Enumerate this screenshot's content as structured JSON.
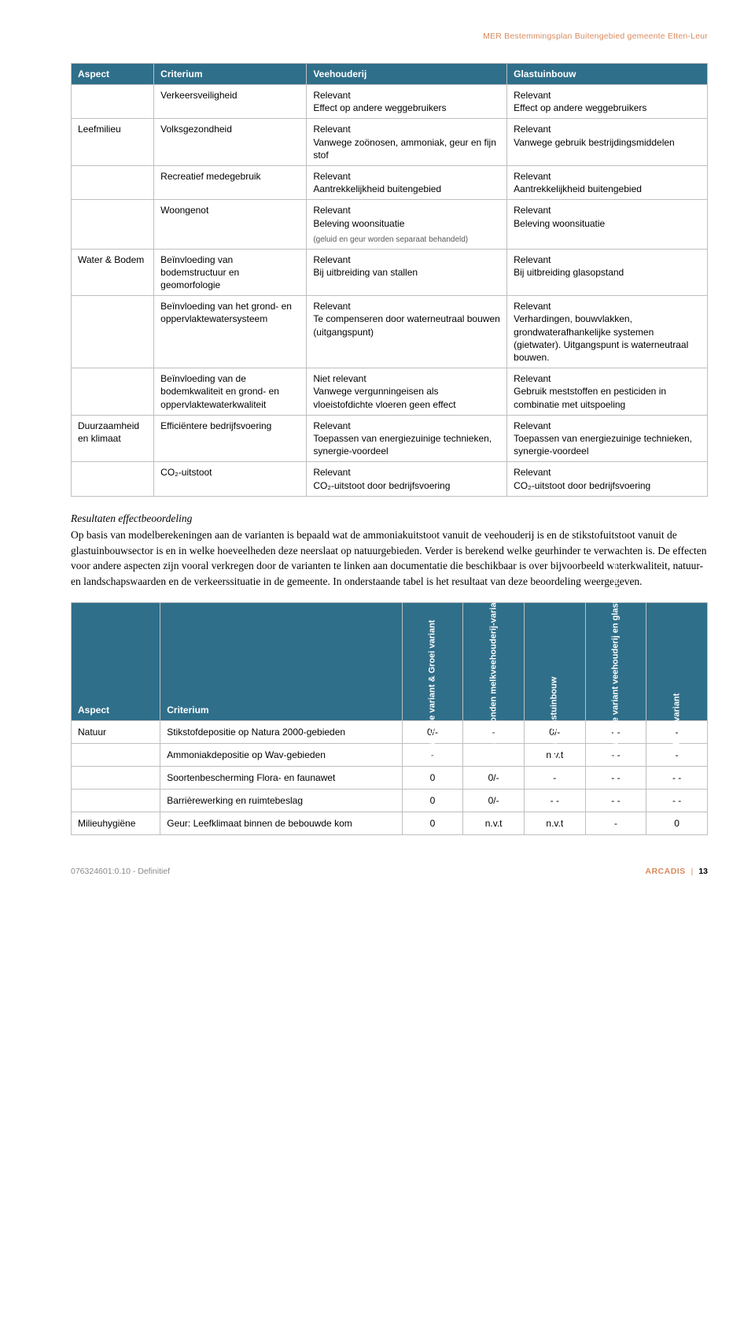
{
  "header": {
    "docTitle": "MER Bestemmingsplan Buitengebied gemeente Etten-Leur"
  },
  "table1": {
    "headers": {
      "aspect": "Aspect",
      "criterium": "Criterium",
      "veehouderij": "Veehouderij",
      "glastuinbouw": "Glastuinbouw"
    },
    "rows": [
      {
        "aspect": "",
        "criterium": "Verkeersveiligheid",
        "c3": "Relevant\nEffect op andere weggebruikers",
        "c4": "Relevant\nEffect op andere weggebruikers"
      },
      {
        "aspect": "Leefmilieu",
        "criterium": "Volksgezondheid",
        "c3": "Relevant\nVanwege zoönosen, ammoniak, geur en fijn stof",
        "c4": "Relevant\nVanwege gebruik bestrijdingsmiddelen"
      },
      {
        "aspect": "",
        "criterium": "Recreatief medegebruik",
        "c3": "Relevant\nAantrekkelijkheid buitengebied",
        "c4": "Relevant\nAantrekkelijkheid buitengebied"
      },
      {
        "aspect": "",
        "criterium": "Woongenot",
        "c3": "Relevant\nBeleving woonsituatie",
        "c3note": "(geluid en geur worden separaat behandeld)",
        "c4": "Relevant\nBeleving woonsituatie"
      },
      {
        "aspect": "Water & Bodem",
        "criterium": "Beïnvloeding van bodemstructuur en geomorfologie",
        "c3": "Relevant\nBij uitbreiding van stallen",
        "c4": "Relevant\nBij uitbreiding glasopstand"
      },
      {
        "aspect": "",
        "criterium": "Beïnvloeding van het grond- en oppervlaktewatersysteem",
        "c3": "Relevant\nTe compenseren door waterneutraal bouwen (uitgangspunt)",
        "c4": "Relevant\nVerhardingen, bouwvlakken, grondwaterafhankelijke systemen (gietwater). Uitgangspunt is waterneutraal bouwen."
      },
      {
        "aspect": "",
        "criterium": "Beïnvloeding van de bodemkwaliteit en grond- en oppervlaktewaterkwaliteit",
        "c3": "Niet relevant\nVanwege vergunningeisen als vloeistofdichte vloeren geen effect",
        "c4": "Relevant\nGebruik meststoffen en pesticiden in combinatie met uitspoeling"
      },
      {
        "aspect": "Duurzaamheid en klimaat",
        "criterium": "Efficiëntere bedrijfsvoering",
        "c3": "Relevant\nToepassen van energiezuinige technieken, synergie-voordeel",
        "c4": "Relevant\nToepassen van energiezuinige technieken, synergie-voordeel"
      },
      {
        "aspect": "",
        "criterium": "CO₂-uitstoot",
        "c3": "Relevant\nCO₂-uitstoot door bedrijfsvoering",
        "c4": "Relevant\nCO₂-uitstoot door bedrijfsvoering"
      }
    ]
  },
  "body": {
    "heading": "Resultaten effectbeoordeling",
    "paragraph": "Op basis van modelberekeningen aan de varianten is bepaald wat de ammoniakuitstoot vanuit de veehouderij is en de stikstofuitstoot vanuit de glastuinbouwsector is en in welke hoeveelheden deze neerslaat op natuurgebieden. Verder is berekend welke geurhinder te verwachten is. De effecten voor andere aspecten zijn vooral verkregen door de varianten te linken aan documentatie die beschikbaar is over bijvoorbeeld waterkwaliteit, natuur- en landschapswaarden en de verkeerssituatie in de gemeente. In onderstaande tabel is het resultaat van deze beoordeling weergegeven."
  },
  "table2": {
    "headers": {
      "aspect": "Aspect",
      "criterium": "Criterium",
      "v1": "Actualisatie variant & Groei variant",
      "v2": "Grondgebonden melkveehouderij-variant",
      "v3": "Variant glastuinbouw",
      "v4": "Worst-case variant veehouderij en glastuinbouw",
      "v5": "Voorkeursvariant"
    },
    "rows": [
      {
        "aspect": "Natuur",
        "criterium": "Stikstofdepositie op Natura 2000-gebieden",
        "v": [
          "0/-",
          "-",
          "0/-",
          "- -",
          "-"
        ]
      },
      {
        "aspect": "",
        "criterium": "Ammoniakdepositie op Wav-gebieden",
        "v": [
          "-",
          "-",
          "n.v.t",
          "- -",
          "-"
        ]
      },
      {
        "aspect": "",
        "criterium": "Soortenbescherming Flora- en faunawet",
        "v": [
          "0",
          "0/-",
          "-",
          "- -",
          "- -"
        ]
      },
      {
        "aspect": "",
        "criterium": "Barrièrewerking en ruimtebeslag",
        "v": [
          "0",
          "0/-",
          "- -",
          "- -",
          "- -"
        ]
      },
      {
        "aspect": "Milieuhygiëne",
        "criterium": "Geur: Leefklimaat binnen de bebouwde kom",
        "v": [
          "0",
          "n.v.t",
          "n.v.t",
          "-",
          "0"
        ]
      }
    ]
  },
  "footer": {
    "left": "076324601:0.10 - Definitief",
    "brand": "ARCADIS",
    "page": "13"
  }
}
